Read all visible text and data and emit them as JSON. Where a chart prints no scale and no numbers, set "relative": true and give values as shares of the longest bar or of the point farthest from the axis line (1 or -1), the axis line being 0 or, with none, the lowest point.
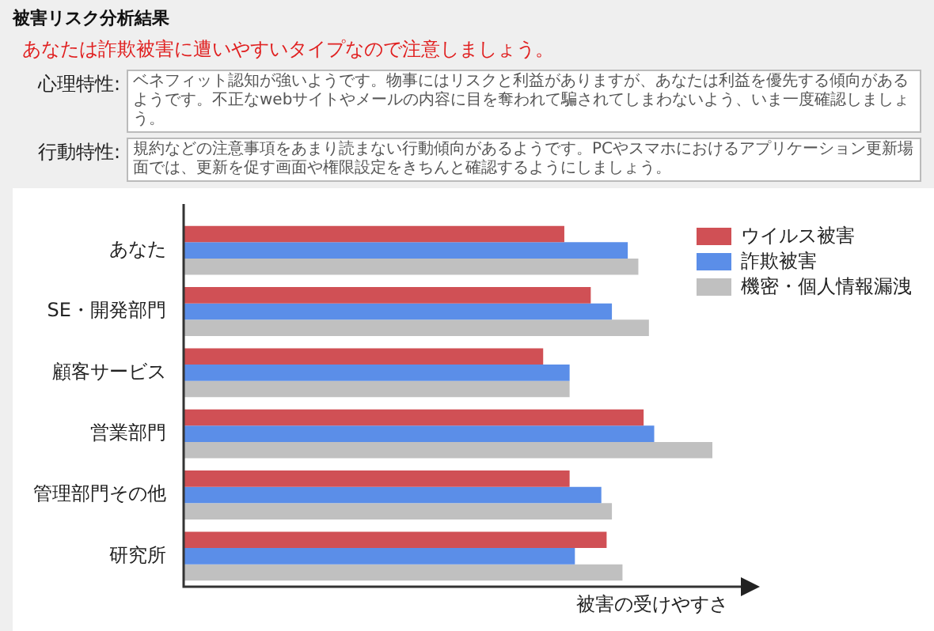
{
  "chart_data": {
    "type": "bar",
    "orientation": "horizontal",
    "relative": true,
    "title": "被害リスク分析結果",
    "subtitle": "あなたは詐欺被害に遭いやすいタイプなので注意しましょう。",
    "annotations": [
      "心理特性:",
      "ベネフィット認知が強いようです。物事にはリスクと利益がありますが、あなたは利益を優先する傾向があるようです。不正なwebサイトやメールの内容に目を奪われて騙されてしまわないよう、いま一度確認しましょう。",
      "行動特性:",
      "規約などの注意事項をあまり読まない行動傾向があるようです。PCやスマホにおけるアプリケーション更新場面では、更新を促す画面や権限設定をきちんと確認するようにしましょう。"
    ],
    "xlabel": "被害の受けやすさ",
    "categories": [
      "あなた",
      "SE・開発部門",
      "顧客サービス",
      "営業部門",
      "管理部門その他",
      "研究所"
    ],
    "series": [
      {
        "name": "ウイルス被害",
        "color": "#d05055",
        "values": [
          0.72,
          0.77,
          0.68,
          0.87,
          0.73,
          0.8
        ]
      },
      {
        "name": "詐欺被害",
        "color": "#5b8ee8",
        "values": [
          0.84,
          0.81,
          0.73,
          0.89,
          0.79,
          0.74
        ]
      },
      {
        "name": "機密・個人情報漏洩",
        "color": "#c0c0c0",
        "values": [
          0.86,
          0.88,
          0.73,
          1,
          0.81,
          0.83
        ]
      }
    ],
    "legend": "top right"
  }
}
